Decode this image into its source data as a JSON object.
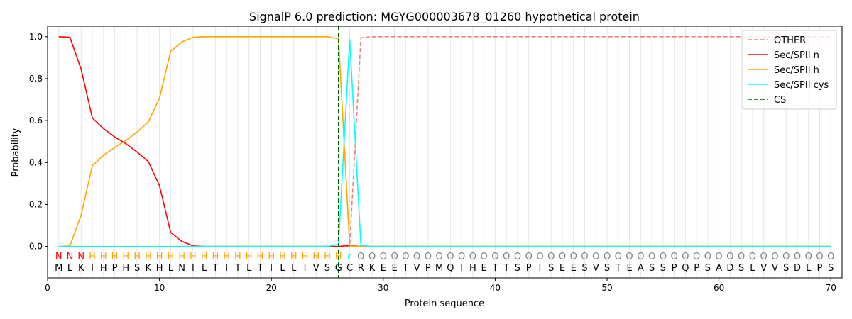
{
  "chart_data": {
    "type": "line",
    "title": "SignalP 6.0 prediction: MGYG000003678_01260 hypothetical protein",
    "xlabel": "Protein sequence",
    "ylabel": "Probability",
    "xlim": [
      0,
      71
    ],
    "ylim": [
      -0.15,
      1.05
    ],
    "xticks": [
      "0",
      "10",
      "20",
      "30",
      "40",
      "50",
      "60",
      "70"
    ],
    "yticks": [
      "0.0",
      "0.2",
      "0.4",
      "0.6",
      "0.8",
      "1.0"
    ],
    "grid": "vertical lines at each residue",
    "legend_position": "top-right",
    "sequence": [
      "M",
      "L",
      "K",
      "I",
      "H",
      "P",
      "H",
      "S",
      "K",
      "H",
      "L",
      "N",
      "I",
      "L",
      "T",
      "I",
      "T",
      "L",
      "T",
      "I",
      "L",
      "L",
      "I",
      "V",
      "S",
      "G",
      "C",
      "R",
      "K",
      "E",
      "E",
      "T",
      "V",
      "P",
      "M",
      "Q",
      "I",
      "H",
      "E",
      "T",
      "T",
      "S",
      "P",
      "I",
      "S",
      "E",
      "E",
      "S",
      "V",
      "S",
      "T",
      "E",
      "A",
      "S",
      "S",
      "P",
      "Q",
      "P",
      "S",
      "A",
      "D",
      "S",
      "L",
      "V",
      "V",
      "S",
      "D",
      "L",
      "P",
      "S"
    ],
    "annotation": [
      "N",
      "N",
      "N",
      "H",
      "H",
      "H",
      "H",
      "H",
      "H",
      "H",
      "H",
      "H",
      "H",
      "H",
      "H",
      "H",
      "H",
      "H",
      "H",
      "H",
      "H",
      "H",
      "H",
      "H",
      "H",
      "H",
      "c",
      "O",
      "O",
      "O",
      "O",
      "O",
      "O",
      "O",
      "O",
      "O",
      "O",
      "O",
      "O",
      "O",
      "O",
      "O",
      "O",
      "O",
      "O",
      "O",
      "O",
      "O",
      "O",
      "O",
      "O",
      "O",
      "O",
      "O",
      "O",
      "O",
      "O",
      "O",
      "O",
      "O",
      "O",
      "O",
      "O",
      "O",
      "O",
      "O",
      "O",
      "O",
      "O",
      "O"
    ],
    "annotation_colors": {
      "N": "#ff0000",
      "H": "#ffa500",
      "c": "#00ffff",
      "O": "#808080"
    },
    "cleavage_site": 26,
    "series": [
      {
        "name": "OTHER",
        "color": "#f08080",
        "dash": "dashed",
        "values": [
          0,
          0,
          0,
          0,
          0,
          0,
          0,
          0,
          0,
          0,
          0,
          0,
          0,
          0,
          0,
          0,
          0,
          0,
          0,
          0,
          0,
          0,
          0,
          0,
          0,
          0,
          0,
          0.995,
          1,
          1,
          1,
          1,
          1,
          1,
          1,
          1,
          1,
          1,
          1,
          1,
          1,
          1,
          1,
          1,
          1,
          1,
          1,
          1,
          1,
          1,
          1,
          1,
          1,
          1,
          1,
          1,
          1,
          1,
          1,
          1,
          1,
          1,
          1,
          1,
          1,
          1,
          1,
          1,
          1,
          1
        ]
      },
      {
        "name": "Sec/SPII n",
        "color": "#ff0000",
        "dash": "solid",
        "values": [
          1.0,
          0.997,
          0.845,
          0.613,
          0.562,
          0.522,
          0.49,
          0.45,
          0.405,
          0.29,
          0.067,
          0.024,
          0.003,
          0,
          0,
          0,
          0,
          0,
          0,
          0,
          0,
          0,
          0,
          0,
          0,
          0,
          0.005,
          0,
          0,
          0,
          0,
          0,
          0,
          0,
          0,
          0,
          0,
          0,
          0,
          0,
          0,
          0,
          0,
          0,
          0,
          0,
          0,
          0,
          0,
          0,
          0,
          0,
          0,
          0,
          0,
          0,
          0,
          0,
          0,
          0,
          0,
          0,
          0,
          0,
          0,
          0,
          0,
          0,
          0,
          0
        ]
      },
      {
        "name": "Sec/SPII h",
        "color": "#ffa500",
        "dash": "solid",
        "values": [
          0,
          0.003,
          0.15,
          0.385,
          0.435,
          0.472,
          0.505,
          0.545,
          0.593,
          0.707,
          0.93,
          0.975,
          0.997,
          1,
          1,
          1,
          1,
          1,
          1,
          1,
          1,
          1,
          1,
          1,
          1,
          0.99,
          0.003,
          0,
          0,
          0,
          0,
          0,
          0,
          0,
          0,
          0,
          0,
          0,
          0,
          0,
          0,
          0,
          0,
          0,
          0,
          0,
          0,
          0,
          0,
          0,
          0,
          0,
          0,
          0,
          0,
          0,
          0,
          0,
          0,
          0,
          0,
          0,
          0,
          0,
          0,
          0,
          0,
          0,
          0,
          0
        ]
      },
      {
        "name": "Sec/SPII cys",
        "color": "#00ffff",
        "dash": "solid",
        "values": [
          0,
          0,
          0,
          0,
          0,
          0,
          0,
          0,
          0,
          0,
          0,
          0,
          0,
          0,
          0,
          0,
          0,
          0,
          0,
          0,
          0,
          0,
          0,
          0,
          0,
          0.01,
          0.988,
          0.005,
          0,
          0,
          0,
          0,
          0,
          0,
          0,
          0,
          0,
          0,
          0,
          0,
          0,
          0,
          0,
          0,
          0,
          0,
          0,
          0,
          0,
          0,
          0,
          0,
          0,
          0,
          0,
          0,
          0,
          0,
          0,
          0,
          0,
          0,
          0,
          0,
          0,
          0,
          0,
          0,
          0,
          0
        ]
      },
      {
        "name": "CS",
        "color": "#006400",
        "dash": "dashed",
        "values": []
      }
    ]
  }
}
